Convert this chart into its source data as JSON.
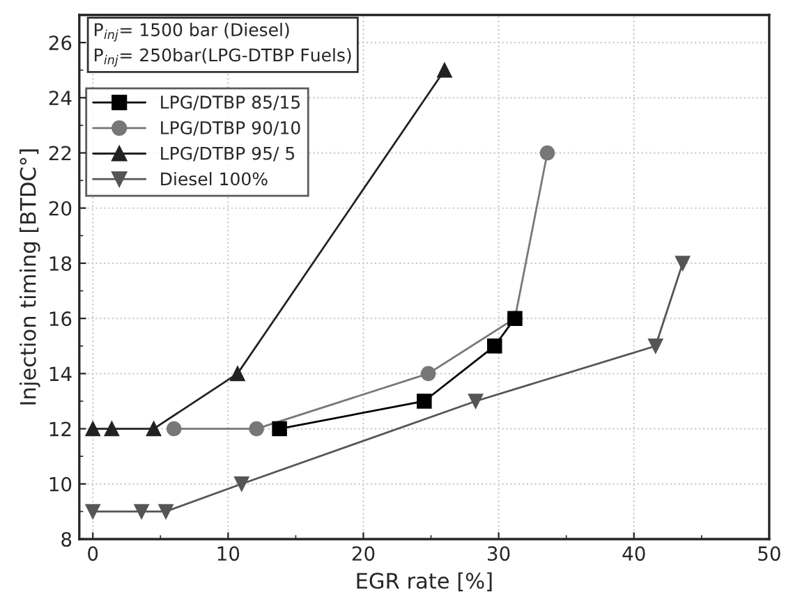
{
  "chart_data": {
    "type": "line",
    "xlabel": "EGR rate [%]",
    "ylabel": "Injection timing [BTDC°]",
    "xlim": [
      -1,
      50
    ],
    "xticks": [
      0,
      10,
      20,
      30,
      40,
      50
    ],
    "ylim": [
      8,
      27
    ],
    "yticks": [
      8,
      10,
      12,
      14,
      16,
      18,
      20,
      22,
      24,
      26
    ],
    "grid": true,
    "legend": "top left",
    "line_style": "solid",
    "annotations": [
      "P$_{inj}$= 1500 bar (Diesel)",
      "P$_{inj}$= 250bar(LPG-DTBP Fuels)"
    ],
    "series": [
      {
        "name": "LPG/DTBP 85/15",
        "color": "#000000",
        "marker": "square",
        "x": [
          13.8,
          24.5,
          29.7,
          31.2
        ],
        "values": [
          12,
          13,
          15,
          16
        ]
      },
      {
        "name": "LPG/DTBP 90/10",
        "color": "#777777",
        "marker": "circle",
        "x": [
          6.0,
          12.1,
          24.8,
          31.2,
          33.6
        ],
        "values": [
          12,
          12,
          14,
          16,
          22
        ]
      },
      {
        "name": "LPG/DTBP 95/ 5",
        "color": "#222222",
        "marker": "triangle",
        "x": [
          0,
          1.4,
          4.5,
          10.7,
          26.0
        ],
        "values": [
          12,
          12,
          12,
          14,
          25
        ]
      },
      {
        "name": "Diesel 100%",
        "color": "#555555",
        "marker": "triangle_down",
        "x": [
          0,
          3.6,
          5.4,
          11.0,
          28.3,
          41.6,
          43.6
        ],
        "values": [
          9,
          9,
          9,
          10,
          13,
          15,
          18
        ]
      }
    ]
  }
}
